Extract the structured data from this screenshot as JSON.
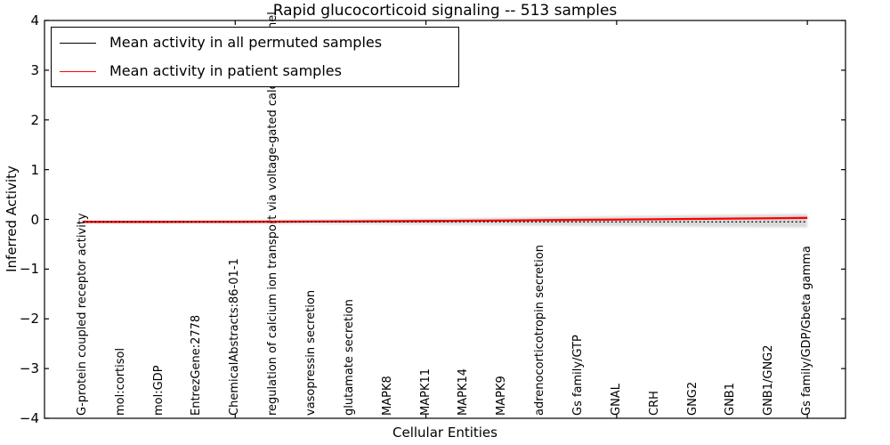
{
  "chart_data": {
    "type": "line",
    "title": "Rapid glucocorticoid signaling -- 513 samples",
    "xlabel": "Cellular Entities",
    "ylabel": "Inferred Activity",
    "xlim": [
      0,
      21
    ],
    "ylim": [
      -4,
      4
    ],
    "grid": false,
    "legend_position": "upper left",
    "xticks": [
      5,
      10,
      15,
      20
    ],
    "yticks": [
      4,
      3,
      2,
      1,
      0,
      -1,
      -2,
      -3,
      -4
    ],
    "yticklabels": [
      "4",
      "3",
      "2",
      "1",
      "0",
      "−1",
      "−2",
      "−3",
      "−4"
    ],
    "x": [
      1,
      2,
      3,
      4,
      5,
      6,
      7,
      8,
      9,
      10,
      11,
      12,
      13,
      14,
      15,
      16,
      17,
      18,
      19,
      20
    ],
    "categories": [
      "G-protein coupled receptor activity",
      "mol:cortisol",
      "mol:GDP",
      "EntrezGene:2778",
      "ChemicalAbstracts:86-01-1",
      "regulation of calcium ion transport via voltage-gated calcium channel",
      "vasopressin secretion",
      "glutamate secretion",
      "MAPK8",
      "MAPK11",
      "MAPK14",
      "MAPK9",
      "adrenocorticotropin secretion",
      "Gs family/GTP",
      "GNAL",
      "CRH",
      "GNG2",
      "GNB1",
      "GNB1/GNG2",
      "Gs family/GDP/Gbeta gamma"
    ],
    "series": [
      {
        "name": "Mean activity in all permuted samples",
        "color": "#000000",
        "style": "dotted",
        "values": [
          -0.05,
          -0.05,
          -0.05,
          -0.05,
          -0.05,
          -0.05,
          -0.05,
          -0.05,
          -0.05,
          -0.05,
          -0.05,
          -0.05,
          -0.05,
          -0.05,
          -0.05,
          -0.05,
          -0.05,
          -0.05,
          -0.05,
          -0.05
        ]
      },
      {
        "name": "Mean activity in patient samples",
        "color": "#ff0000",
        "style": "solid",
        "values": [
          -0.05,
          -0.05,
          -0.05,
          -0.049,
          -0.048,
          -0.046,
          -0.043,
          -0.04,
          -0.036,
          -0.032,
          -0.027,
          -0.022,
          -0.016,
          -0.01,
          -0.004,
          0.002,
          0.009,
          0.016,
          0.023,
          0.03
        ]
      }
    ],
    "band": {
      "name": "permuted activity spread",
      "color": "#d7d7d7",
      "upper": [
        -0.028,
        -0.026,
        -0.023,
        -0.02,
        -0.016,
        -0.011,
        -0.005,
        0.001,
        0.008,
        0.016,
        0.024,
        0.033,
        0.042,
        0.052,
        0.062,
        0.072,
        0.082,
        0.092,
        0.101,
        0.11
      ],
      "lower": [
        -0.072,
        -0.074,
        -0.077,
        -0.08,
        -0.084,
        -0.088,
        -0.092,
        -0.096,
        -0.101,
        -0.106,
        -0.111,
        -0.117,
        -0.123,
        -0.129,
        -0.135,
        -0.141,
        -0.147,
        -0.153,
        -0.158,
        -0.163
      ]
    }
  }
}
